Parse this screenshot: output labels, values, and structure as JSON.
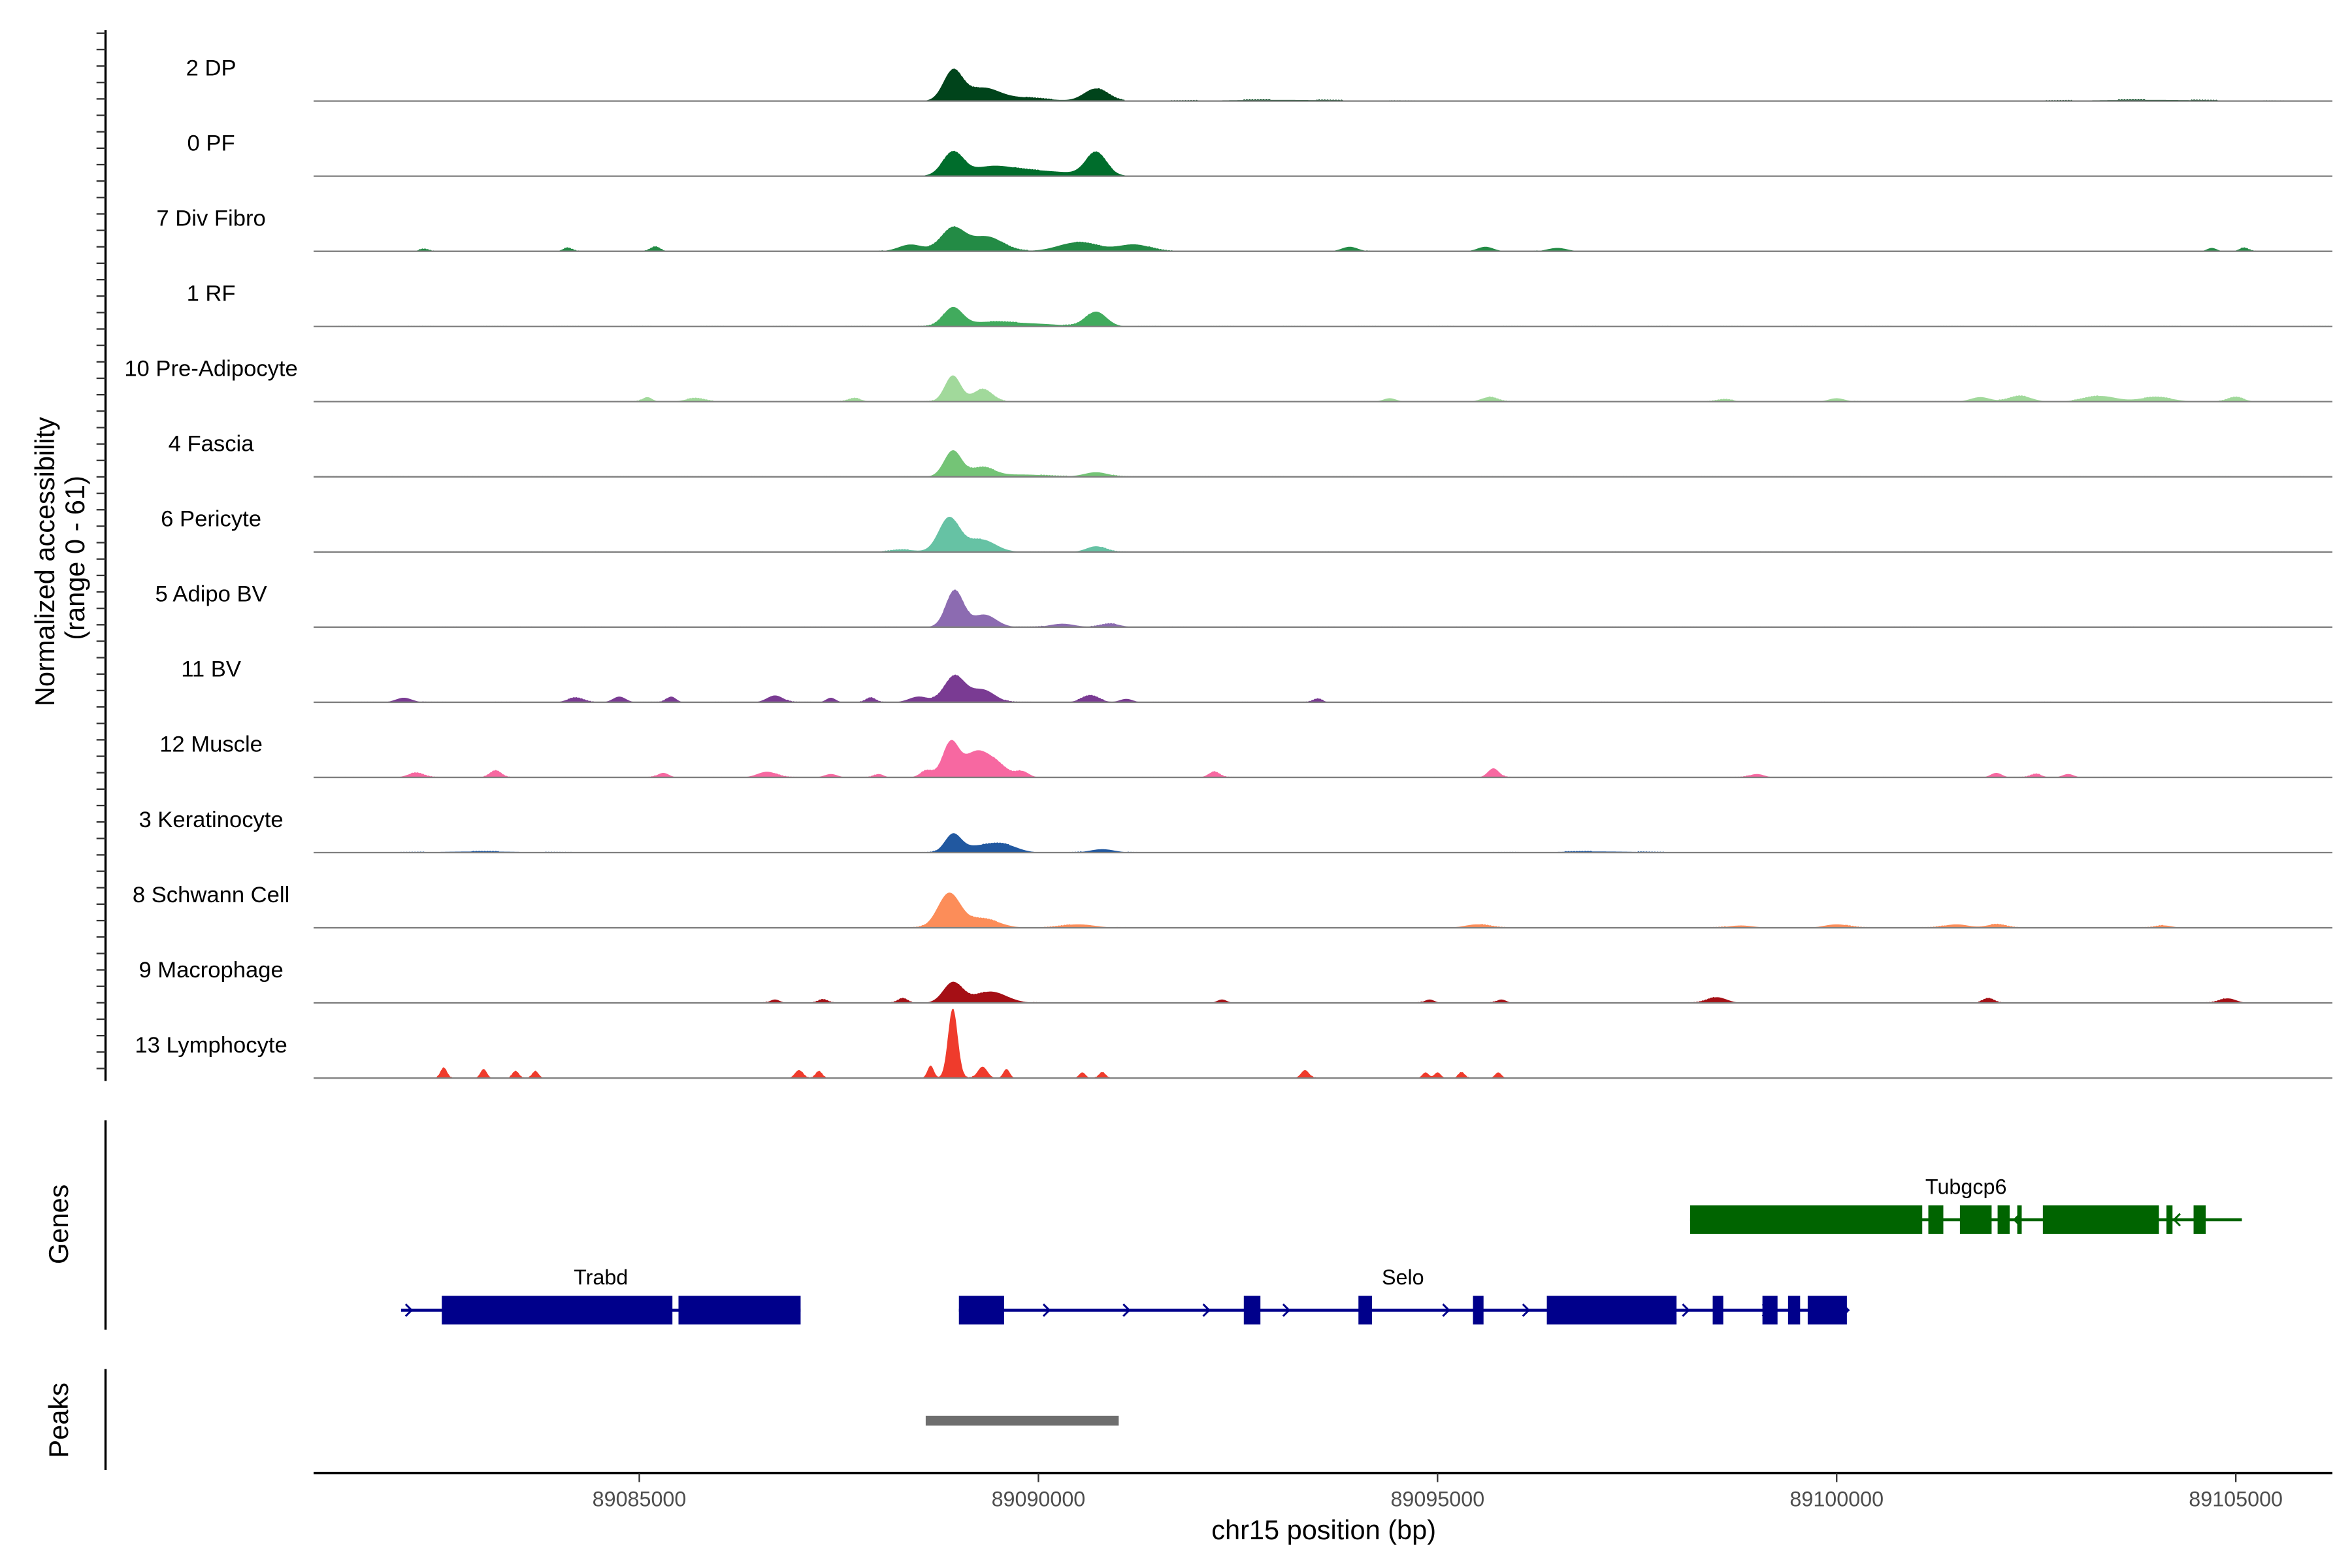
{
  "chart_data": {
    "type": "area",
    "title": "",
    "xlabel": "chr15 position (bp)",
    "ylabel": "Normalized accessibility\n(range 0 - 61)",
    "ylabel_lines": [
      "Normalized accessibility",
      "(range 0 - 61)"
    ],
    "ylim": [
      0,
      61
    ],
    "xlim": [
      89080920,
      89106210
    ],
    "xticks": [
      89085000,
      89090000,
      89095000,
      89100000,
      89105000
    ],
    "xtick_labels": [
      "89085000",
      "89090000",
      "89095000",
      "89100000",
      "89105000"
    ],
    "panel_labels": {
      "genes": "Genes",
      "peaks": "Peaks"
    },
    "tracks": [
      {
        "name": "2 DP",
        "color": "#00441b",
        "peaks": [
          [
            89088928,
            26,
            120
          ],
          [
            89089300,
            11,
            200
          ],
          [
            89090722,
            11,
            150
          ],
          [
            89089800,
            3,
            300
          ],
          [
            89093000,
            1,
            800
          ],
          [
            89103900,
            1,
            800
          ]
        ]
      },
      {
        "name": "0 PF",
        "color": "#006d2c",
        "peaks": [
          [
            89088928,
            20,
            130
          ],
          [
            89089900,
            5,
            500
          ],
          [
            89090722,
            20,
            130
          ],
          [
            89089400,
            6,
            250
          ]
        ]
      },
      {
        "name": "7 Div Fibro",
        "color": "#238b45",
        "peaks": [
          [
            89088928,
            20,
            150
          ],
          [
            89089350,
            13,
            200
          ],
          [
            89088400,
            6,
            150
          ],
          [
            89090500,
            8,
            250
          ],
          [
            89091200,
            6,
            200
          ],
          [
            89084100,
            3,
            60
          ],
          [
            89085200,
            4,
            60
          ],
          [
            89093900,
            4,
            100
          ],
          [
            89095600,
            4,
            100
          ],
          [
            89096500,
            3,
            120
          ],
          [
            89104700,
            3,
            60
          ],
          [
            89105100,
            3,
            60
          ],
          [
            89082300,
            2,
            60
          ]
        ]
      },
      {
        "name": "1 RF",
        "color": "#41ab5d",
        "peaks": [
          [
            89088928,
            16,
            120
          ],
          [
            89090722,
            13,
            130
          ],
          [
            89089400,
            4,
            300
          ],
          [
            89090000,
            2,
            300
          ]
        ]
      },
      {
        "name": "10 Pre-Adipocyte",
        "color": "#a1d99b",
        "peaks": [
          [
            89088928,
            23,
            100
          ],
          [
            89089300,
            11,
            120
          ],
          [
            89085100,
            4,
            60
          ],
          [
            89085700,
            3,
            120
          ],
          [
            89087700,
            3,
            80
          ],
          [
            89094400,
            3,
            80
          ],
          [
            89095650,
            4,
            100
          ],
          [
            89098600,
            2,
            100
          ],
          [
            89100000,
            3,
            100
          ],
          [
            89101800,
            4,
            120
          ],
          [
            89102300,
            5,
            140
          ],
          [
            89103300,
            5,
            200
          ],
          [
            89104000,
            4,
            200
          ],
          [
            89105000,
            4,
            100
          ]
        ]
      },
      {
        "name": "4 Fascia",
        "color": "#74c476",
        "peaks": [
          [
            89088928,
            23,
            110
          ],
          [
            89089300,
            8,
            150
          ],
          [
            89090722,
            4,
            150
          ],
          [
            89089800,
            2,
            300
          ]
        ]
      },
      {
        "name": "6 Pericyte",
        "color": "#66c2a4",
        "peaks": [
          [
            89088880,
            30,
            130
          ],
          [
            89089280,
            11,
            180
          ],
          [
            89090722,
            5,
            120
          ],
          [
            89088300,
            2,
            150
          ]
        ]
      },
      {
        "name": "5 Adipo BV",
        "color": "#8c6bb1",
        "peaks": [
          [
            89088950,
            32,
            110
          ],
          [
            89089320,
            11,
            150
          ],
          [
            89090300,
            3,
            150
          ],
          [
            89090900,
            3,
            120
          ]
        ]
      },
      {
        "name": "11 BV",
        "color": "#7a3b93",
        "peaks": [
          [
            89088950,
            23,
            130
          ],
          [
            89089300,
            11,
            150
          ],
          [
            89088500,
            5,
            120
          ],
          [
            89082050,
            4,
            100
          ],
          [
            89084200,
            4,
            100
          ],
          [
            89084750,
            5,
            80
          ],
          [
            89085400,
            5,
            60
          ],
          [
            89086700,
            6,
            100
          ],
          [
            89087400,
            4,
            60
          ],
          [
            89087900,
            4,
            60
          ],
          [
            89090650,
            6,
            110
          ],
          [
            89091100,
            3,
            80
          ],
          [
            89093500,
            3,
            60
          ]
        ]
      },
      {
        "name": "12 Muscle",
        "color": "#f768a1",
        "peaks": [
          [
            89088900,
            30,
            100
          ],
          [
            89089200,
            20,
            150
          ],
          [
            89089450,
            12,
            150
          ],
          [
            89088600,
            6,
            80
          ],
          [
            89082200,
            4,
            100
          ],
          [
            89083200,
            6,
            70
          ],
          [
            89085300,
            4,
            70
          ],
          [
            89086600,
            5,
            120
          ],
          [
            89087400,
            3,
            80
          ],
          [
            89088000,
            3,
            60
          ],
          [
            89089800,
            5,
            80
          ],
          [
            89092200,
            5,
            70
          ],
          [
            89095700,
            8,
            70
          ],
          [
            89099000,
            3,
            90
          ],
          [
            89102000,
            4,
            70
          ],
          [
            89102500,
            3,
            70
          ],
          [
            89102900,
            3,
            70
          ]
        ]
      },
      {
        "name": "3 Keratinocyte",
        "color": "#2158a0",
        "peaks": [
          [
            89088928,
            15,
            100
          ],
          [
            89089550,
            7,
            180
          ],
          [
            89089200,
            5,
            200
          ],
          [
            89090800,
            3,
            150
          ],
          [
            89083000,
            1,
            500
          ],
          [
            89097000,
            1,
            500
          ]
        ]
      },
      {
        "name": "8 Schwann Cell",
        "color": "#fc8d59",
        "peaks": [
          [
            89088880,
            30,
            140
          ],
          [
            89089300,
            8,
            200
          ],
          [
            89090500,
            3,
            200
          ],
          [
            89095500,
            3,
            150
          ],
          [
            89098800,
            2,
            150
          ],
          [
            89100000,
            3,
            150
          ],
          [
            89101500,
            3,
            150
          ],
          [
            89102000,
            3,
            120
          ],
          [
            89104100,
            2,
            100
          ]
        ]
      },
      {
        "name": "9 Macrophage",
        "color": "#a50f15",
        "peaks": [
          [
            89088928,
            18,
            120
          ],
          [
            89089400,
            10,
            200
          ],
          [
            89088300,
            4,
            60
          ],
          [
            89087300,
            3,
            60
          ],
          [
            89086700,
            3,
            60
          ],
          [
            89092300,
            3,
            60
          ],
          [
            89094900,
            3,
            60
          ],
          [
            89095800,
            3,
            60
          ],
          [
            89098500,
            5,
            120
          ],
          [
            89101900,
            4,
            70
          ],
          [
            89104900,
            4,
            100
          ]
        ]
      },
      {
        "name": "13 Lymphocyte",
        "color": "#ef3b2c",
        "peaks": [
          [
            89088928,
            61,
            60
          ],
          [
            89088650,
            11,
            40
          ],
          [
            89089300,
            10,
            60
          ],
          [
            89089600,
            8,
            40
          ],
          [
            89082550,
            9,
            40
          ],
          [
            89083050,
            8,
            40
          ],
          [
            89083450,
            6,
            40
          ],
          [
            89083700,
            6,
            40
          ],
          [
            89087000,
            7,
            50
          ],
          [
            89087250,
            6,
            40
          ],
          [
            89090550,
            5,
            40
          ],
          [
            89090800,
            5,
            40
          ],
          [
            89093340,
            7,
            50
          ],
          [
            89094850,
            5,
            40
          ],
          [
            89095000,
            5,
            40
          ],
          [
            89095300,
            5,
            40
          ],
          [
            89095760,
            5,
            40
          ]
        ]
      }
    ],
    "genes": [
      {
        "name": "Trabd",
        "strand": "+",
        "color": "#00008b",
        "start": 89082016,
        "end": 89087021,
        "exons": [
          [
            89082526,
            89085415
          ],
          [
            89085491,
            89087021
          ]
        ]
      },
      {
        "name": "Selo",
        "strand": "+",
        "color": "#00008b",
        "start": 89089004,
        "end": 89100128,
        "exons": [
          [
            89089004,
            89089570
          ],
          [
            89092573,
            89092781
          ],
          [
            89094009,
            89094179
          ],
          [
            89095444,
            89095576
          ],
          [
            89096369,
            89097994
          ],
          [
            89098447,
            89098579
          ],
          [
            89099070,
            89099259
          ],
          [
            89099391,
            89099542
          ],
          [
            89099637,
            89100128
          ]
        ]
      },
      {
        "name": "Tubgcp6",
        "strand": "-",
        "color": "#006400",
        "start": 89098164,
        "end": 89105076,
        "exons": [
          [
            89098164,
            89101072
          ],
          [
            89101148,
            89101336
          ],
          [
            89101544,
            89101941
          ],
          [
            89102016,
            89102167
          ],
          [
            89102262,
            89102318
          ],
          [
            89102583,
            89104037
          ],
          [
            89104131,
            89104207
          ],
          [
            89104471,
            89104623
          ]
        ]
      }
    ],
    "peak_regions": [
      {
        "start": 89088588,
        "end": 89091006,
        "color": "#6e6e6e"
      }
    ]
  }
}
